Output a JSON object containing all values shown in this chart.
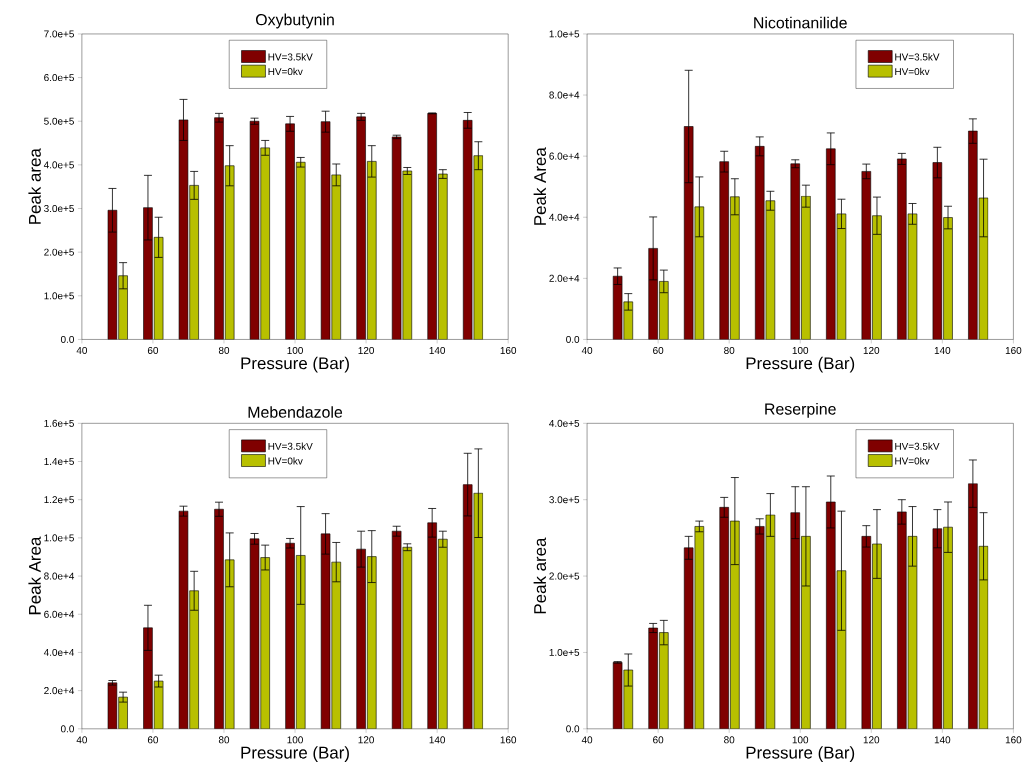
{
  "chart_data": [
    {
      "type": "bar",
      "title": "Oxybutynin",
      "xlabel": "Pressure (Bar)",
      "ylabel": "Peak area",
      "xlim": [
        40,
        160
      ],
      "xticks": [
        40,
        60,
        80,
        100,
        120,
        140,
        160
      ],
      "ylim": [
        0,
        700000
      ],
      "yticks": [
        {
          "value": 0,
          "label": "0.0"
        },
        {
          "value": 100000,
          "label": "1.0e+5"
        },
        {
          "value": 200000,
          "label": "2.0e+5"
        },
        {
          "value": 300000,
          "label": "3.0e+5"
        },
        {
          "value": 400000,
          "label": "4.0e+5"
        },
        {
          "value": 500000,
          "label": "5.0e+5"
        },
        {
          "value": 600000,
          "label": "6.0e+5"
        },
        {
          "value": 700000,
          "label": "7.0e+5"
        }
      ],
      "legend": "top",
      "grid": false,
      "series": [
        {
          "name": "HV=3.5kV",
          "color": "#800000",
          "x": [
            48.6,
            58.6,
            68.6,
            78.6,
            88.6,
            98.6,
            108.6,
            118.6,
            128.6,
            138.6,
            148.6
          ],
          "values": [
            296000,
            302000,
            503000,
            508000,
            500000,
            494000,
            499000,
            510000,
            464000,
            518000,
            502000
          ],
          "errors": [
            50000,
            74000,
            47000,
            10000,
            7000,
            17000,
            24000,
            8000,
            4000,
            1000,
            18000
          ]
        },
        {
          "name": "HV=0kv",
          "color": "#b8c000",
          "x": [
            51.6,
            61.6,
            71.6,
            81.6,
            91.6,
            101.6,
            111.6,
            121.6,
            131.6,
            141.6,
            151.6
          ],
          "values": [
            146000,
            234000,
            353000,
            398000,
            439000,
            406000,
            377000,
            408000,
            386000,
            379000,
            421000
          ],
          "errors": [
            30000,
            46000,
            32000,
            46000,
            17000,
            11000,
            25000,
            36000,
            8000,
            10000,
            32000
          ]
        }
      ]
    },
    {
      "type": "bar",
      "title": "Nicotinanilide",
      "xlabel": "Pressure (Bar)",
      "ylabel": "Peak Area",
      "xlim": [
        40,
        160
      ],
      "xticks": [
        40,
        60,
        80,
        100,
        120,
        140,
        160
      ],
      "ylim": [
        0,
        100000
      ],
      "yticks": [
        {
          "value": 0,
          "label": "0.0"
        },
        {
          "value": 20000,
          "label": "2.0e+4"
        },
        {
          "value": 40000,
          "label": "4.0e+4"
        },
        {
          "value": 60000,
          "label": "6.0e+4"
        },
        {
          "value": 80000,
          "label": "8.0e+4"
        },
        {
          "value": 100000,
          "label": "1.0e+5"
        }
      ],
      "legend": "top right",
      "grid": false,
      "series": [
        {
          "name": "HV=3.5kV",
          "color": "#800000",
          "x": [
            48.6,
            58.6,
            68.6,
            78.6,
            88.6,
            98.6,
            108.6,
            118.6,
            128.6,
            138.6,
            148.6
          ],
          "values": [
            20700,
            29800,
            69700,
            58200,
            63200,
            57500,
            62400,
            55000,
            59100,
            57900,
            68200
          ],
          "errors": [
            2700,
            10300,
            18400,
            3400,
            3100,
            1300,
            5200,
            2400,
            1800,
            5000,
            4000
          ]
        },
        {
          "name": "HV=0kv",
          "color": "#b8c000",
          "x": [
            51.6,
            61.6,
            71.6,
            81.6,
            91.6,
            101.6,
            111.6,
            121.6,
            131.6,
            141.6,
            151.6
          ],
          "values": [
            12300,
            19000,
            43400,
            46700,
            45400,
            46900,
            41100,
            40500,
            41100,
            39900,
            46300
          ],
          "errors": [
            2700,
            3700,
            9800,
            5900,
            3100,
            3600,
            4800,
            6100,
            3400,
            3700,
            12700
          ]
        }
      ]
    },
    {
      "type": "bar",
      "title": "Mebendazole",
      "xlabel": "Pressure (Bar)",
      "ylabel": "Peak Area",
      "xlim": [
        40,
        160
      ],
      "xticks": [
        40,
        60,
        80,
        100,
        120,
        140,
        160
      ],
      "ylim": [
        0,
        160000
      ],
      "yticks": [
        {
          "value": 0,
          "label": "0.0"
        },
        {
          "value": 20000,
          "label": "2.0e+4"
        },
        {
          "value": 40000,
          "label": "4.0e+4"
        },
        {
          "value": 60000,
          "label": "6.0e+4"
        },
        {
          "value": 80000,
          "label": "8.0e+4"
        },
        {
          "value": 100000,
          "label": "1.0e+5"
        },
        {
          "value": 120000,
          "label": "1.2e+5"
        },
        {
          "value": 140000,
          "label": "1.4e+5"
        },
        {
          "value": 160000,
          "label": "1.6e+5"
        }
      ],
      "legend": "top",
      "grid": false,
      "series": [
        {
          "name": "HV=3.5kV",
          "color": "#800000",
          "x": [
            48.6,
            58.6,
            68.6,
            78.6,
            88.6,
            98.6,
            108.6,
            118.6,
            128.6,
            138.6,
            148.6
          ],
          "values": [
            24100,
            52900,
            114000,
            115000,
            99500,
            97200,
            102100,
            94100,
            103500,
            107900,
            127900
          ],
          "errors": [
            1200,
            11800,
            2600,
            3700,
            2800,
            2500,
            10600,
            9400,
            2600,
            7500,
            16400
          ]
        },
        {
          "name": "HV=0kv",
          "color": "#b8c000",
          "x": [
            51.6,
            61.6,
            71.6,
            81.6,
            91.6,
            101.6,
            111.6,
            121.6,
            131.6,
            141.6,
            151.6
          ],
          "values": [
            16600,
            25000,
            72300,
            88500,
            89700,
            90800,
            87300,
            90200,
            95100,
            99300,
            123400
          ],
          "errors": [
            2600,
            3100,
            10200,
            14100,
            6500,
            25600,
            10300,
            13600,
            1800,
            4200,
            23200
          ]
        }
      ]
    },
    {
      "type": "bar",
      "title": "Reserpine",
      "xlabel": "Pressure (Bar)",
      "ylabel": "Peak area",
      "xlim": [
        40,
        160
      ],
      "xticks": [
        40,
        60,
        80,
        100,
        120,
        140,
        160
      ],
      "ylim": [
        0,
        400000
      ],
      "yticks": [
        {
          "value": 0,
          "label": "0.0"
        },
        {
          "value": 100000,
          "label": "1.0e+5"
        },
        {
          "value": 200000,
          "label": "2.0e+5"
        },
        {
          "value": 300000,
          "label": "3.0e+5"
        },
        {
          "value": 400000,
          "label": "4.0e+5"
        }
      ],
      "legend": "top right",
      "grid": false,
      "series": [
        {
          "name": "HV=3.5kV",
          "color": "#800000",
          "x": [
            48.6,
            58.6,
            68.6,
            78.6,
            88.6,
            98.6,
            108.6,
            118.6,
            128.6,
            138.6,
            148.6
          ],
          "values": [
            87000,
            132000,
            237000,
            290000,
            265000,
            283000,
            297000,
            252000,
            284000,
            262000,
            321000
          ],
          "errors": [
            1000,
            6000,
            15000,
            13000,
            10000,
            34000,
            34000,
            14000,
            16000,
            25000,
            31000
          ]
        },
        {
          "name": "HV=0kv",
          "color": "#b8c000",
          "x": [
            51.6,
            61.6,
            71.6,
            81.6,
            91.6,
            101.6,
            111.6,
            121.6,
            131.6,
            141.6,
            151.6
          ],
          "values": [
            77000,
            126000,
            265000,
            272000,
            280000,
            252000,
            207000,
            242000,
            252000,
            264000,
            239000
          ],
          "errors": [
            21000,
            16000,
            7000,
            57000,
            28000,
            65000,
            78000,
            45000,
            39000,
            33000,
            44000
          ]
        }
      ]
    }
  ]
}
